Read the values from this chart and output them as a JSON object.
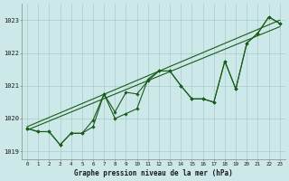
{
  "title": "Graphe pression niveau de la mer (hPa)",
  "bg_color": "#cce8e8",
  "grid_color": "#aacccc",
  "line_color": "#1a5c1a",
  "xlim": [
    -0.5,
    23.5
  ],
  "ylim": [
    1018.75,
    1023.5
  ],
  "xticks": [
    0,
    1,
    2,
    3,
    4,
    5,
    6,
    7,
    8,
    9,
    10,
    11,
    12,
    13,
    14,
    15,
    16,
    17,
    18,
    19,
    20,
    21,
    22,
    23
  ],
  "yticks": [
    1019,
    1020,
    1021,
    1022,
    1023
  ],
  "line1": [
    1019.7,
    1019.6,
    1019.6,
    1019.2,
    1019.55,
    1019.55,
    1019.75,
    1020.75,
    1020.0,
    1020.15,
    1020.3,
    1021.2,
    1021.45,
    1021.45,
    1021.0,
    1020.6,
    1020.6,
    1020.5,
    1021.75,
    1020.9,
    1022.3,
    1022.6,
    1023.1,
    1022.9
  ],
  "line2": [
    1019.7,
    1019.6,
    1019.6,
    1019.2,
    1019.55,
    1019.55,
    1019.95,
    1020.75,
    1020.2,
    1020.8,
    1020.75,
    1021.15,
    1021.45,
    1021.45,
    1021.0,
    1020.6,
    1020.6,
    1020.5,
    1021.75,
    1020.9,
    1022.3,
    1022.6,
    1023.1,
    1022.9
  ],
  "trend1_x": [
    0,
    23
  ],
  "trend1_y": [
    1019.65,
    1022.8
  ],
  "trend2_x": [
    0,
    23
  ],
  "trend2_y": [
    1019.75,
    1023.0
  ]
}
